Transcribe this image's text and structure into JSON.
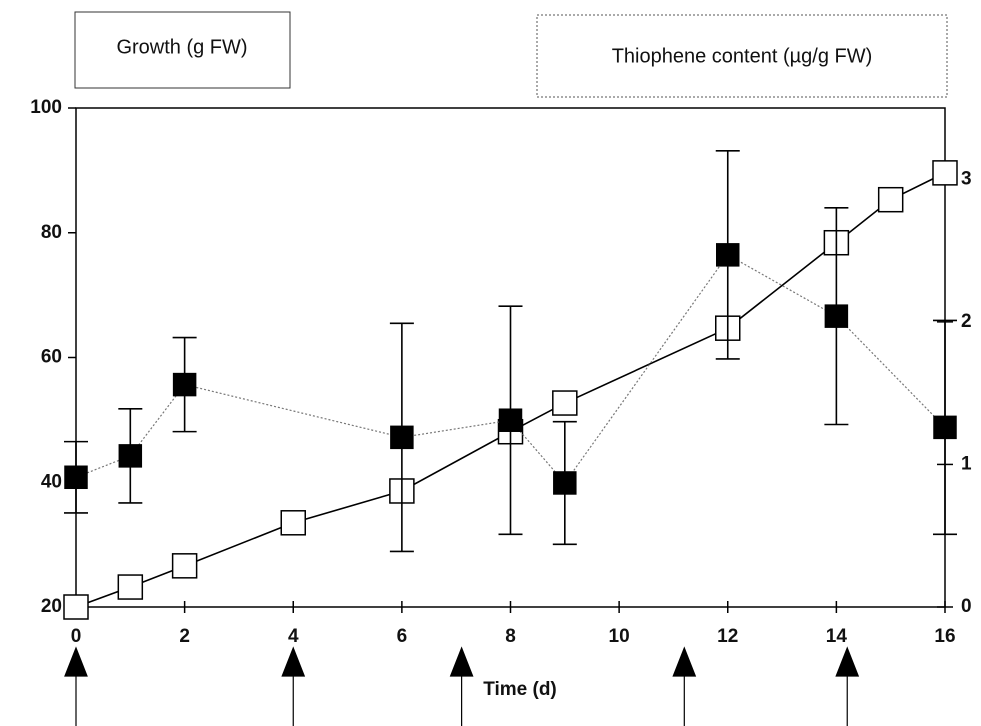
{
  "chart_data": {
    "type": "line",
    "xlabel": "Time (d)",
    "xlim": [
      0,
      16
    ],
    "xticks": [
      0,
      2,
      4,
      6,
      8,
      10,
      12,
      14,
      16
    ],
    "ylim": [
      20,
      100
    ],
    "yticks": [
      20,
      40,
      60,
      80,
      100
    ],
    "y2lim": [
      0,
      3.5
    ],
    "y2ticks": [
      0,
      1,
      2,
      3
    ],
    "arrows_x": [
      0,
      4,
      7.1,
      11.2,
      14.2
    ],
    "series": [
      {
        "name": "Growth (g FW)",
        "color": "#000000",
        "marker": "open-square",
        "line": "solid",
        "x": [
          0,
          1,
          2,
          4,
          6,
          8,
          9,
          12,
          14,
          15,
          16
        ],
        "values": [
          20,
          23.2,
          26.6,
          33.5,
          38.6,
          48.1,
          52.7,
          64.7,
          78.4,
          85.3,
          89.6
        ]
      },
      {
        "name": "Thiophene content (µg/g FW)",
        "color": "#000000",
        "marker": "filled-square",
        "line": "dotted",
        "axis": "y2",
        "x": [
          0,
          1,
          2,
          6,
          8,
          9,
          12,
          14,
          16
        ],
        "values": [
          0.91,
          1.06,
          1.56,
          1.19,
          1.31,
          0.87,
          2.47,
          2.04,
          1.26
        ],
        "errors": [
          0.25,
          0.33,
          0.33,
          0.8,
          0.8,
          0.43,
          0.73,
          0.76,
          0.75
        ]
      }
    ]
  }
}
